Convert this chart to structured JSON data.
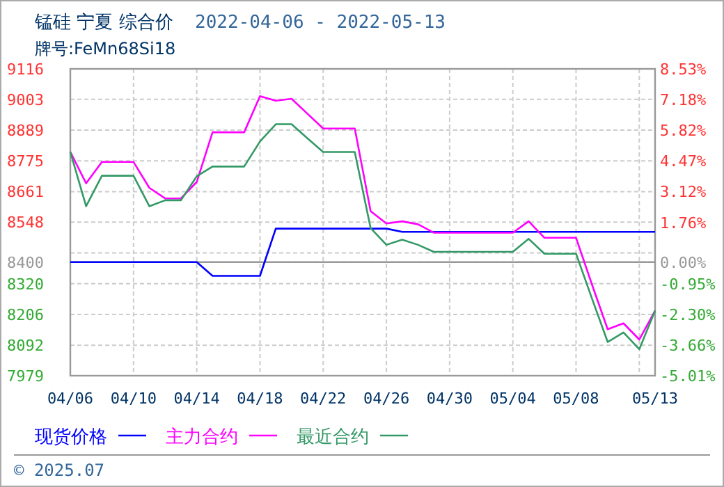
{
  "chart_data": {
    "type": "line",
    "title": "锰硅  宁夏  综合价",
    "subtitle": "2022-04-06 - 2022-05-13",
    "annotations": [
      "牌号:FeMn68Si18",
      "© 2025.07"
    ],
    "x": [
      "2022-04-06",
      "2022-04-07",
      "2022-04-08",
      "2022-04-09",
      "2022-04-10",
      "2022-04-11",
      "2022-04-12",
      "2022-04-13",
      "2022-04-14",
      "2022-04-15",
      "2022-04-16",
      "2022-04-17",
      "2022-04-18",
      "2022-04-19",
      "2022-04-20",
      "2022-04-21",
      "2022-04-22",
      "2022-04-23",
      "2022-04-24",
      "2022-04-25",
      "2022-04-26",
      "2022-04-27",
      "2022-04-28",
      "2022-04-29",
      "2022-04-30",
      "2022-05-01",
      "2022-05-02",
      "2022-05-03",
      "2022-05-04",
      "2022-05-05",
      "2022-05-06",
      "2022-05-07",
      "2022-05-08",
      "2022-05-09",
      "2022-05-10",
      "2022-05-11",
      "2022-05-12",
      "2022-05-13"
    ],
    "series": [
      {
        "name": "现货价格",
        "color": "#0000ff",
        "values": [
          8400,
          8400,
          8400,
          8400,
          8400,
          8400,
          8400,
          8400,
          8400,
          8349,
          8349,
          8349,
          8349,
          8524,
          8524,
          8524,
          8524,
          8524,
          8524,
          8524,
          8524,
          8512,
          8512,
          8512,
          8512,
          8512,
          8512,
          8512,
          8512,
          8512,
          8512,
          8512,
          8512,
          8512,
          8512,
          8512,
          8512,
          8512
        ]
      },
      {
        "name": "主力合约",
        "color": "#ff00ff",
        "values": [
          8808,
          8692,
          8771,
          8771,
          8771,
          8675,
          8636,
          8636,
          8697,
          8881,
          8881,
          8881,
          9015,
          8998,
          9005,
          8950,
          8895,
          8895,
          8895,
          8589,
          8543,
          8551,
          8540,
          8509,
          8509,
          8509,
          8509,
          8509,
          8509,
          8551,
          8490,
          8490,
          8490,
          8318,
          8151,
          8173,
          8113,
          8220
        ]
      },
      {
        "name": "最近合约",
        "color": "#339966",
        "values": [
          8808,
          8607,
          8720,
          8720,
          8720,
          8607,
          8629,
          8629,
          8718,
          8754,
          8754,
          8754,
          8847,
          8911,
          8911,
          8859,
          8808,
          8808,
          8808,
          8526,
          8464,
          8483,
          8464,
          8438,
          8438,
          8438,
          8438,
          8438,
          8438,
          8486,
          8431,
          8431,
          8431,
          8266,
          8104,
          8139,
          8077,
          8220
        ]
      }
    ],
    "xlim": [
      "2022-04-06",
      "2022-05-13"
    ],
    "xticks": [
      {
        "value": "2022-04-06",
        "label": "04/06"
      },
      {
        "value": "2022-04-10",
        "label": "04/10"
      },
      {
        "value": "2022-04-14",
        "label": "04/14"
      },
      {
        "value": "2022-04-18",
        "label": "04/18"
      },
      {
        "value": "2022-04-22",
        "label": "04/22"
      },
      {
        "value": "2022-04-26",
        "label": "04/26"
      },
      {
        "value": "2022-04-30",
        "label": "04/30"
      },
      {
        "value": "2022-05-04",
        "label": "05/04"
      },
      {
        "value": "2022-05-08",
        "label": "05/08"
      },
      {
        "value": "2022-05-12",
        "label": null
      },
      {
        "value": "2022-05-13",
        "label": "05/13"
      }
    ],
    "ylim": [
      7979,
      9116
    ],
    "yticks": [
      9116,
      9003,
      8889,
      8775,
      8661,
      8548,
      {
        "value": 8434,
        "label": null
      },
      8400,
      8320,
      8206,
      8092,
      7979
    ],
    "y2lim": [
      -5.01,
      8.53
    ],
    "y2ticks": [
      {
        "value": 8.53,
        "label": "8.53%"
      },
      {
        "value": 7.18,
        "label": "7.18%"
      },
      {
        "value": 5.82,
        "label": "5.82%"
      },
      {
        "value": 4.47,
        "label": "4.47%"
      },
      {
        "value": 3.12,
        "label": "3.12%"
      },
      {
        "value": 1.76,
        "label": "1.76%"
      },
      {
        "value": 0,
        "label": "0.00%"
      },
      {
        "value": -0.95,
        "label": "-0.95%"
      },
      {
        "value": -2.3,
        "label": "-2.30%"
      },
      {
        "value": -3.66,
        "label": "-3.66%"
      },
      {
        "value": -5.01,
        "label": "-5.01%"
      }
    ],
    "ref_lines": [
      {
        "axis": "y",
        "value": 8400,
        "color": "#999999"
      }
    ],
    "grid": true,
    "legend": "bottom"
  }
}
